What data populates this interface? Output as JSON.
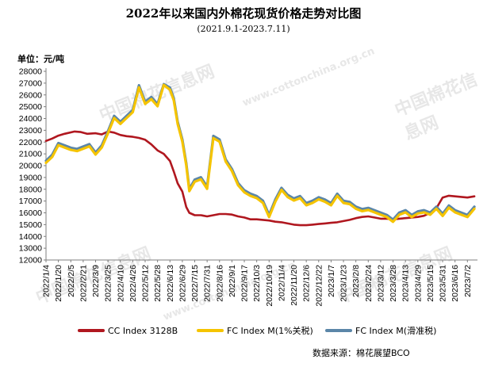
{
  "chart_data": {
    "type": "line",
    "title": "2022年以来国内外棉花现货价格走势对比图",
    "subtitle": "(2021.9.1-2023.7.11)",
    "ylabel": "单位：元/吨",
    "ylim": [
      12000,
      28000
    ],
    "y_ticks": [
      12000,
      13000,
      14000,
      15000,
      16000,
      17000,
      18000,
      19000,
      20000,
      21000,
      22000,
      23000,
      24000,
      25000,
      26000,
      27000,
      28000
    ],
    "x_tick_labels": [
      "2022/1/4",
      "2022/1/20",
      "2022/2/5",
      "2022/2/21",
      "2022/3/9",
      "2022/3/25",
      "2022/4/10",
      "2022/4/26",
      "2022/5/12",
      "2022/5/28",
      "2022/6/13",
      "2022/6/29",
      "2022/7/15",
      "2022/7/31",
      "2022/8/16",
      "2022/9/1",
      "2022/9/17",
      "2022/10/3",
      "2022/10/19",
      "2022/11/4",
      "2022/11/20",
      "2022/12/6",
      "2022/12/22",
      "2023/1/7",
      "2023/1/23",
      "2023/2/8",
      "2023/2/24",
      "2023/3/12",
      "2023/3/28",
      "2023/4/13",
      "2023/4/29",
      "2023/5/15",
      "2023/5/31",
      "2023/6/16",
      "2023/7/2"
    ],
    "grid": false,
    "legend_position": "bottom",
    "source": "数据来源：棉花展望BCO",
    "series": [
      {
        "name": "CC Index 3128B",
        "color": "#b0171f",
        "points": [
          [
            "2022/1/4",
            22100
          ],
          [
            "2022/1/12",
            22300
          ],
          [
            "2022/1/20",
            22550
          ],
          [
            "2022/1/28",
            22700
          ],
          [
            "2022/2/10",
            22900
          ],
          [
            "2022/2/18",
            22850
          ],
          [
            "2022/2/26",
            22700
          ],
          [
            "2022/3/9",
            22750
          ],
          [
            "2022/3/17",
            22650
          ],
          [
            "2022/3/25",
            22900
          ],
          [
            "2022/4/2",
            22800
          ],
          [
            "2022/4/10",
            22600
          ],
          [
            "2022/4/18",
            22500
          ],
          [
            "2022/4/26",
            22450
          ],
          [
            "2022/5/4",
            22350
          ],
          [
            "2022/5/12",
            22200
          ],
          [
            "2022/5/20",
            21800
          ],
          [
            "2022/5/28",
            21300
          ],
          [
            "2022/6/5",
            21000
          ],
          [
            "2022/6/13",
            20400
          ],
          [
            "2022/6/18",
            19500
          ],
          [
            "2022/6/23",
            18500
          ],
          [
            "2022/6/29",
            17800
          ],
          [
            "2022/7/4",
            16500
          ],
          [
            "2022/7/8",
            16000
          ],
          [
            "2022/7/15",
            15800
          ],
          [
            "2022/7/23",
            15800
          ],
          [
            "2022/7/31",
            15700
          ],
          [
            "2022/8/8",
            15800
          ],
          [
            "2022/8/16",
            15900
          ],
          [
            "2022/8/24",
            15900
          ],
          [
            "2022/9/1",
            15850
          ],
          [
            "2022/9/9",
            15700
          ],
          [
            "2022/9/17",
            15600
          ],
          [
            "2022/9/25",
            15450
          ],
          [
            "2022/10/3",
            15450
          ],
          [
            "2022/10/11",
            15400
          ],
          [
            "2022/10/19",
            15350
          ],
          [
            "2022/10/27",
            15250
          ],
          [
            "2022/11/4",
            15200
          ],
          [
            "2022/11/12",
            15100
          ],
          [
            "2022/11/20",
            15000
          ],
          [
            "2022/11/28",
            14950
          ],
          [
            "2022/12/6",
            14950
          ],
          [
            "2022/12/14",
            15000
          ],
          [
            "2022/12/22",
            15050
          ],
          [
            "2022/12/30",
            15100
          ],
          [
            "2023/1/7",
            15150
          ],
          [
            "2023/1/15",
            15200
          ],
          [
            "2023/1/23",
            15300
          ],
          [
            "2023/1/31",
            15400
          ],
          [
            "2023/2/8",
            15550
          ],
          [
            "2023/2/16",
            15650
          ],
          [
            "2023/2/24",
            15700
          ],
          [
            "2023/3/4",
            15600
          ],
          [
            "2023/3/12",
            15500
          ],
          [
            "2023/3/20",
            15500
          ],
          [
            "2023/3/28",
            15450
          ],
          [
            "2023/4/5",
            15500
          ],
          [
            "2023/4/13",
            15550
          ],
          [
            "2023/4/21",
            15600
          ],
          [
            "2023/4/29",
            15650
          ],
          [
            "2023/5/7",
            15750
          ],
          [
            "2023/5/15",
            16000
          ],
          [
            "2023/5/23",
            16400
          ],
          [
            "2023/5/31",
            17300
          ],
          [
            "2023/6/8",
            17450
          ],
          [
            "2023/6/16",
            17400
          ],
          [
            "2023/6/24",
            17350
          ],
          [
            "2023/7/2",
            17300
          ],
          [
            "2023/7/11",
            17400
          ]
        ]
      },
      {
        "name": "FC Index M(1%关税)",
        "color": "#f5c400",
        "points": [
          [
            "2022/1/4",
            20200
          ],
          [
            "2022/1/12",
            20700
          ],
          [
            "2022/1/20",
            21700
          ],
          [
            "2022/1/28",
            21500
          ],
          [
            "2022/2/5",
            21300
          ],
          [
            "2022/2/13",
            21200
          ],
          [
            "2022/2/21",
            21400
          ],
          [
            "2022/3/1",
            21600
          ],
          [
            "2022/3/9",
            20900
          ],
          [
            "2022/3/17",
            21500
          ],
          [
            "2022/3/25",
            22700
          ],
          [
            "2022/4/2",
            24000
          ],
          [
            "2022/4/10",
            23500
          ],
          [
            "2022/4/18",
            24000
          ],
          [
            "2022/4/26",
            24500
          ],
          [
            "2022/5/4",
            26600
          ],
          [
            "2022/5/12",
            25200
          ],
          [
            "2022/5/20",
            25600
          ],
          [
            "2022/5/28",
            25000
          ],
          [
            "2022/6/5",
            26800
          ],
          [
            "2022/6/13",
            26400
          ],
          [
            "2022/6/18",
            25500
          ],
          [
            "2022/6/23",
            23500
          ],
          [
            "2022/6/29",
            22000
          ],
          [
            "2022/7/4",
            20000
          ],
          [
            "2022/7/8",
            17800
          ],
          [
            "2022/7/15",
            18600
          ],
          [
            "2022/7/23",
            18800
          ],
          [
            "2022/7/31",
            18000
          ],
          [
            "2022/8/8",
            22300
          ],
          [
            "2022/8/16",
            22000
          ],
          [
            "2022/8/24",
            20300
          ],
          [
            "2022/9/1",
            19500
          ],
          [
            "2022/9/9",
            18300
          ],
          [
            "2022/9/17",
            17700
          ],
          [
            "2022/9/25",
            17400
          ],
          [
            "2022/10/3",
            17200
          ],
          [
            "2022/10/11",
            16800
          ],
          [
            "2022/10/19",
            15600
          ],
          [
            "2022/10/27",
            16900
          ],
          [
            "2022/11/4",
            17900
          ],
          [
            "2022/11/12",
            17300
          ],
          [
            "2022/11/20",
            17000
          ],
          [
            "2022/11/28",
            17200
          ],
          [
            "2022/12/6",
            16600
          ],
          [
            "2022/12/14",
            16800
          ],
          [
            "2022/12/22",
            17100
          ],
          [
            "2022/12/30",
            16900
          ],
          [
            "2023/1/7",
            16600
          ],
          [
            "2023/1/15",
            17400
          ],
          [
            "2023/1/23",
            16800
          ],
          [
            "2023/1/31",
            16700
          ],
          [
            "2023/2/8",
            16300
          ],
          [
            "2023/2/16",
            16100
          ],
          [
            "2023/2/24",
            16200
          ],
          [
            "2023/3/4",
            16000
          ],
          [
            "2023/3/12",
            15800
          ],
          [
            "2023/3/20",
            15600
          ],
          [
            "2023/3/28",
            15200
          ],
          [
            "2023/4/5",
            15800
          ],
          [
            "2023/4/13",
            16000
          ],
          [
            "2023/4/21",
            15600
          ],
          [
            "2023/4/29",
            15900
          ],
          [
            "2023/5/7",
            16000
          ],
          [
            "2023/5/15",
            15800
          ],
          [
            "2023/5/23",
            16300
          ],
          [
            "2023/5/31",
            15700
          ],
          [
            "2023/6/8",
            16400
          ],
          [
            "2023/6/16",
            16000
          ],
          [
            "2023/6/24",
            15800
          ],
          [
            "2023/7/2",
            15600
          ],
          [
            "2023/7/11",
            16300
          ]
        ]
      },
      {
        "name": "FC Index M(滑准税)",
        "color": "#5b86a8",
        "points": [
          [
            "2022/1/4",
            20500
          ],
          [
            "2022/1/12",
            21000
          ],
          [
            "2022/1/20",
            22000
          ],
          [
            "2022/1/28",
            21800
          ],
          [
            "2022/2/5",
            21600
          ],
          [
            "2022/2/13",
            21500
          ],
          [
            "2022/2/21",
            21700
          ],
          [
            "2022/3/1",
            21900
          ],
          [
            "2022/3/9",
            21200
          ],
          [
            "2022/3/17",
            21800
          ],
          [
            "2022/3/25",
            23000
          ],
          [
            "2022/4/2",
            24300
          ],
          [
            "2022/4/10",
            23800
          ],
          [
            "2022/4/18",
            24300
          ],
          [
            "2022/4/26",
            24800
          ],
          [
            "2022/5/4",
            26900
          ],
          [
            "2022/5/12",
            25500
          ],
          [
            "2022/5/20",
            25900
          ],
          [
            "2022/5/28",
            25300
          ],
          [
            "2022/6/5",
            27000
          ],
          [
            "2022/6/13",
            26700
          ],
          [
            "2022/6/18",
            25800
          ],
          [
            "2022/6/23",
            23800
          ],
          [
            "2022/6/29",
            22300
          ],
          [
            "2022/7/4",
            20300
          ],
          [
            "2022/7/8",
            18100
          ],
          [
            "2022/7/15",
            18900
          ],
          [
            "2022/7/23",
            19100
          ],
          [
            "2022/7/31",
            18300
          ],
          [
            "2022/8/8",
            22600
          ],
          [
            "2022/8/16",
            22300
          ],
          [
            "2022/8/24",
            20600
          ],
          [
            "2022/9/1",
            19800
          ],
          [
            "2022/9/9",
            18600
          ],
          [
            "2022/9/17",
            18000
          ],
          [
            "2022/9/25",
            17700
          ],
          [
            "2022/10/3",
            17500
          ],
          [
            "2022/10/11",
            17100
          ],
          [
            "2022/10/19",
            15900
          ],
          [
            "2022/10/27",
            17200
          ],
          [
            "2022/11/4",
            18200
          ],
          [
            "2022/11/12",
            17600
          ],
          [
            "2022/11/20",
            17300
          ],
          [
            "2022/11/28",
            17500
          ],
          [
            "2022/12/6",
            16900
          ],
          [
            "2022/12/14",
            17100
          ],
          [
            "2022/12/22",
            17400
          ],
          [
            "2022/12/30",
            17200
          ],
          [
            "2023/1/7",
            16900
          ],
          [
            "2023/1/15",
            17700
          ],
          [
            "2023/1/23",
            17100
          ],
          [
            "2023/1/31",
            17000
          ],
          [
            "2023/2/8",
            16600
          ],
          [
            "2023/2/16",
            16400
          ],
          [
            "2023/2/24",
            16500
          ],
          [
            "2023/3/4",
            16300
          ],
          [
            "2023/3/12",
            16100
          ],
          [
            "2023/3/20",
            15900
          ],
          [
            "2023/3/28",
            15500
          ],
          [
            "2023/4/5",
            16100
          ],
          [
            "2023/4/13",
            16300
          ],
          [
            "2023/4/21",
            15900
          ],
          [
            "2023/4/29",
            16200
          ],
          [
            "2023/5/7",
            16300
          ],
          [
            "2023/5/15",
            16100
          ],
          [
            "2023/5/23",
            16600
          ],
          [
            "2023/5/31",
            16000
          ],
          [
            "2023/6/8",
            16700
          ],
          [
            "2023/6/16",
            16300
          ],
          [
            "2023/6/24",
            16100
          ],
          [
            "2023/7/2",
            15900
          ],
          [
            "2023/7/11",
            16600
          ]
        ]
      }
    ]
  },
  "watermark": {
    "text_cn": "中国棉花信息网",
    "text_url": "www.cottonchina.org.cn"
  }
}
